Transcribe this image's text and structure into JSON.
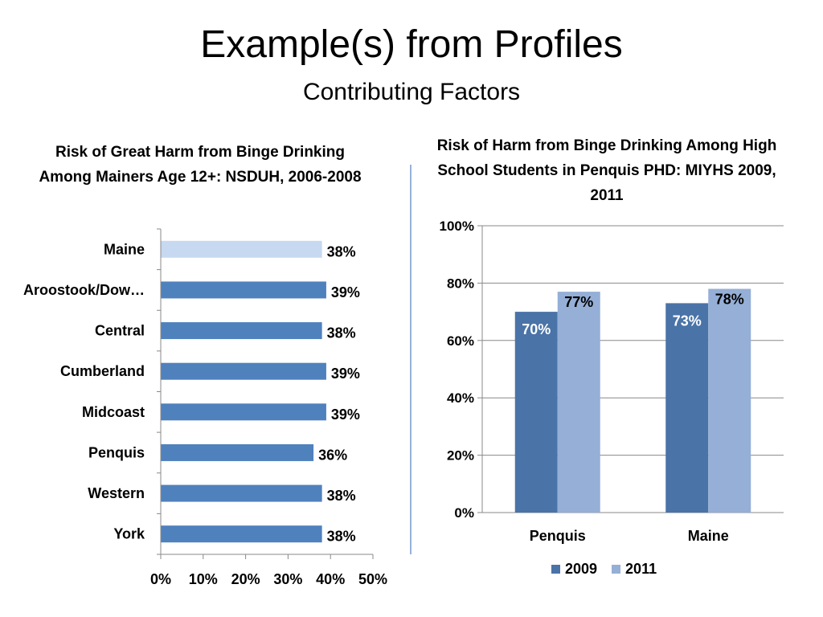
{
  "slide": {
    "title": "Example(s) from Profiles",
    "subtitle": "Contributing Factors"
  },
  "colors": {
    "bar_primary": "#4f81bd",
    "bar_highlight": "#c6d9f1",
    "series_2009": "#4a73a8",
    "series_2011": "#95afd6",
    "divider": "#95b3d7",
    "gridline": "#888888"
  },
  "chart_data": [
    {
      "type": "bar",
      "orientation": "horizontal",
      "title": "Risk of Great Harm from Binge Drinking Among Mainers Age 12+: NSDUH, 2006-2008",
      "categories": [
        "Maine",
        "Aroostook/Dow…",
        "Central",
        "Cumberland",
        "Midcoast",
        "Penquis",
        "Western",
        "York"
      ],
      "values": [
        38,
        39,
        38,
        39,
        39,
        36,
        38,
        38
      ],
      "data_labels": [
        "38%",
        "39%",
        "38%",
        "39%",
        "39%",
        "36%",
        "38%",
        "38%"
      ],
      "highlight_category": "Maine",
      "xlim": [
        0,
        50
      ],
      "xticks": [
        "0%",
        "10%",
        "20%",
        "30%",
        "40%",
        "50%"
      ],
      "grid": false
    },
    {
      "type": "bar",
      "orientation": "vertical",
      "title": "Risk of Harm from Binge Drinking Among High School Students in Penquis PHD: MIYHS 2009, 2011",
      "categories": [
        "Penquis",
        "Maine"
      ],
      "series": [
        {
          "name": "2009",
          "values": [
            70,
            73
          ],
          "data_labels": [
            "70%",
            "73%"
          ]
        },
        {
          "name": "2011",
          "values": [
            77,
            78
          ],
          "data_labels": [
            "77%",
            "78%"
          ]
        }
      ],
      "ylim": [
        0,
        100
      ],
      "yticks": [
        "0%",
        "20%",
        "40%",
        "60%",
        "80%",
        "100%"
      ],
      "grid": true,
      "legend": "bottom"
    }
  ]
}
